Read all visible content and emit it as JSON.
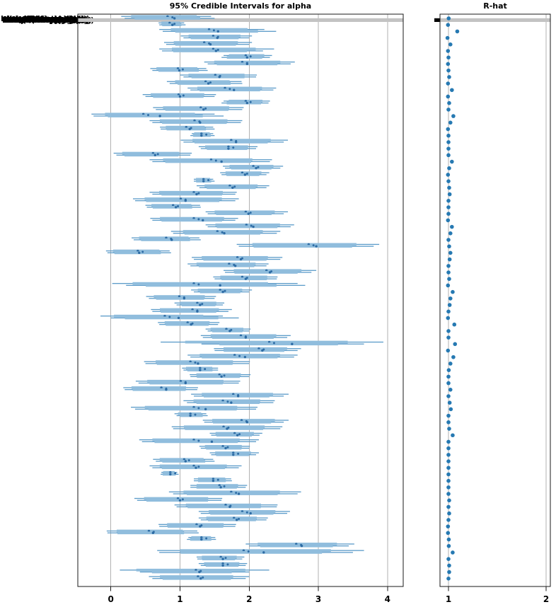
{
  "left_plot": {
    "title": "95% Credible Intervals for alpha",
    "x_tick_labels": [
      "0",
      "1",
      "2",
      "3",
      "4"
    ],
    "y_tick_labels_overlapping": [
      "Lakog(Dbattwl,pWgqb)",
      "Laloyb(Ntirsvya,Mgg)",
      "Lake(Bhswqkqgb,Ndg)",
      "Lalog4kMjqti,JgqWb)",
      "Lakos(B4uvrAddy,jg)",
      "Laloq(Ntlesvy,MAgq)",
      "Lakojr(Dwstplg,Wgb)",
      "Lale4(Dkfrwqy,pjgg)",
      "Lakob(Nhswjkag,Mdg)",
      "Laloi(Bttrsvqa,Jgb)"
    ]
  },
  "right_plot": {
    "title": "R-hat",
    "x_tick_labels": [
      "1",
      "2"
    ]
  },
  "colors": {
    "interval_thin": "#5b9bc9",
    "interval_thick": "#90bddd",
    "median_dot": "#2d6ca5",
    "rhat_dot": "#2679b2",
    "gridline": "#b2b2b2",
    "spine": "#1a1a1a",
    "highlight_band": "#c3c3c3",
    "tick_marker": "#000000"
  },
  "chart_data": [
    {
      "type": "interval",
      "title": "95% Credible Intervals for alpha",
      "xlabel": "",
      "ylabel": "",
      "xlim": [
        -0.48,
        4.22
      ],
      "x_ticks": [
        0,
        1,
        2,
        3,
        4
      ],
      "grid": "vertical",
      "legend": "none",
      "highlight_row_index": 0,
      "row_format": [
        "lo_chain1",
        "hi_chain1",
        "median_chain1",
        "lo_chain2",
        "hi_chain2",
        "median_chain2"
      ],
      "rows": [
        [
          0.15,
          1.45,
          0.82,
          0.2,
          1.5,
          0.92
        ],
        [
          0.69,
          1.06,
          0.85,
          0.7,
          1.08,
          0.89
        ],
        [
          0.7,
          2.22,
          1.42,
          0.75,
          2.39,
          1.55
        ],
        [
          1.01,
          2.04,
          1.48,
          1.05,
          2.0,
          1.54
        ],
        [
          0.77,
          2.04,
          1.35,
          0.8,
          2.0,
          1.44
        ],
        [
          0.7,
          2.36,
          1.48,
          0.74,
          2.2,
          1.52
        ],
        [
          1.63,
          2.33,
          1.95,
          1.6,
          2.3,
          1.97
        ],
        [
          1.35,
          2.66,
          1.9,
          1.4,
          2.6,
          1.97
        ],
        [
          0.57,
          1.38,
          0.97,
          0.6,
          1.4,
          0.99
        ],
        [
          1.0,
          2.11,
          1.51,
          1.05,
          2.1,
          1.57
        ],
        [
          0.81,
          1.89,
          1.37,
          0.85,
          1.9,
          1.41
        ],
        [
          1.11,
          2.39,
          1.65,
          1.15,
          2.35,
          1.78
        ],
        [
          0.46,
          1.52,
          0.98,
          0.5,
          1.5,
          1.0
        ],
        [
          1.63,
          2.3,
          1.95,
          1.6,
          2.28,
          1.97
        ],
        [
          0.61,
          1.92,
          1.3,
          0.65,
          1.9,
          1.34
        ],
        [
          -0.28,
          1.5,
          0.47,
          -0.25,
          1.63,
          0.71
        ],
        [
          0.56,
          1.9,
          1.21,
          0.6,
          1.88,
          1.29
        ],
        [
          0.71,
          1.48,
          1.09,
          0.72,
          1.5,
          1.14
        ],
        [
          1.17,
          1.48,
          1.31,
          1.15,
          1.5,
          1.31
        ],
        [
          1.01,
          2.56,
          1.74,
          1.05,
          2.5,
          1.81
        ],
        [
          1.27,
          2.12,
          1.7,
          1.3,
          2.1,
          1.7
        ],
        [
          0.04,
          1.17,
          0.61,
          0.08,
          1.15,
          0.64
        ],
        [
          0.56,
          2.33,
          1.45,
          0.6,
          2.3,
          1.6
        ],
        [
          1.62,
          2.49,
          2.06,
          1.65,
          2.45,
          2.1
        ],
        [
          1.58,
          2.29,
          1.9,
          1.6,
          2.25,
          1.94
        ],
        [
          1.2,
          1.48,
          1.34,
          1.2,
          1.5,
          1.34
        ],
        [
          1.24,
          2.29,
          1.72,
          1.28,
          2.25,
          1.76
        ],
        [
          0.56,
          1.82,
          1.2,
          0.6,
          1.8,
          1.24
        ],
        [
          0.32,
          1.85,
          1.01,
          0.35,
          1.8,
          1.08
        ],
        [
          0.5,
          1.29,
          0.9,
          0.52,
          1.3,
          0.94
        ],
        [
          1.37,
          2.56,
          1.95,
          1.4,
          2.5,
          1.99
        ],
        [
          0.57,
          1.84,
          1.2,
          0.6,
          1.8,
          1.33
        ],
        [
          1.37,
          2.65,
          1.96,
          1.4,
          2.6,
          2.06
        ],
        [
          0.87,
          2.45,
          1.54,
          0.9,
          2.4,
          1.64
        ],
        [
          0.3,
          1.28,
          0.8,
          0.33,
          1.3,
          0.88
        ],
        [
          1.82,
          3.88,
          2.86,
          1.85,
          3.8,
          2.97
        ],
        [
          -0.07,
          0.85,
          0.39,
          -0.05,
          0.87,
          0.41
        ],
        [
          1.17,
          2.48,
          1.83,
          1.2,
          2.45,
          1.88
        ],
        [
          1.11,
          2.28,
          1.71,
          1.15,
          2.25,
          1.8
        ],
        [
          1.63,
          2.97,
          2.25,
          1.65,
          2.9,
          2.3
        ],
        [
          1.48,
          2.41,
          1.9,
          1.5,
          2.4,
          1.95
        ],
        [
          0.02,
          2.7,
          1.2,
          0.22,
          2.81,
          1.58
        ],
        [
          1.16,
          2.04,
          1.58,
          1.2,
          2.0,
          1.62
        ],
        [
          0.51,
          1.52,
          0.99,
          0.55,
          1.5,
          1.06
        ],
        [
          0.92,
          1.64,
          1.25,
          0.95,
          1.62,
          1.29
        ],
        [
          0.58,
          1.75,
          1.18,
          0.6,
          1.7,
          1.25
        ],
        [
          -0.15,
          1.62,
          0.78,
          0.0,
          1.85,
          0.98
        ],
        [
          0.68,
          1.57,
          1.11,
          0.7,
          1.55,
          1.16
        ],
        [
          1.37,
          2.02,
          1.67,
          1.4,
          2.0,
          1.72
        ],
        [
          1.3,
          2.6,
          1.88,
          1.33,
          2.55,
          1.95
        ],
        [
          0.72,
          3.94,
          2.29,
          1.31,
          3.66,
          2.62
        ],
        [
          1.49,
          2.75,
          2.14,
          1.5,
          2.7,
          2.19
        ],
        [
          1.11,
          2.7,
          1.79,
          1.15,
          2.65,
          1.94
        ],
        [
          0.48,
          2.01,
          1.15,
          0.5,
          2.0,
          1.26
        ],
        [
          1.03,
          1.55,
          1.29,
          1.05,
          1.55,
          1.29
        ],
        [
          1.14,
          2.02,
          1.57,
          1.15,
          2.0,
          1.6
        ],
        [
          0.36,
          1.87,
          1.01,
          0.4,
          1.85,
          1.08
        ],
        [
          0.18,
          1.26,
          0.73,
          0.2,
          1.25,
          0.8
        ],
        [
          1.16,
          2.57,
          1.77,
          1.2,
          2.5,
          1.84
        ],
        [
          1.05,
          2.37,
          1.62,
          1.1,
          2.35,
          1.74
        ],
        [
          0.29,
          2.12,
          1.2,
          0.35,
          2.1,
          1.37
        ],
        [
          0.92,
          1.38,
          1.15,
          0.95,
          1.4,
          1.15
        ],
        [
          1.33,
          2.57,
          1.89,
          1.35,
          2.5,
          1.97
        ],
        [
          0.88,
          2.48,
          1.63,
          0.9,
          2.45,
          1.68
        ],
        [
          1.43,
          2.19,
          1.79,
          1.45,
          2.15,
          1.83
        ],
        [
          0.41,
          2.14,
          1.2,
          0.45,
          2.1,
          1.46
        ],
        [
          1.28,
          2.01,
          1.62,
          1.3,
          2.0,
          1.66
        ],
        [
          1.43,
          2.14,
          1.77,
          1.45,
          2.1,
          1.77
        ],
        [
          0.61,
          1.48,
          1.06,
          0.65,
          1.5,
          1.08
        ],
        [
          0.56,
          1.89,
          1.2,
          0.6,
          1.85,
          1.23
        ],
        [
          0.73,
          0.96,
          0.86,
          0.72,
          0.98,
          0.86
        ],
        [
          1.2,
          1.74,
          1.48,
          1.2,
          1.75,
          1.48
        ],
        [
          1.15,
          1.97,
          1.57,
          1.15,
          1.95,
          1.59
        ],
        [
          0.84,
          2.75,
          1.74,
          0.9,
          2.7,
          1.85
        ],
        [
          0.34,
          1.61,
          0.97,
          0.38,
          1.6,
          1.0
        ],
        [
          0.92,
          2.41,
          1.66,
          0.95,
          2.4,
          1.72
        ],
        [
          1.27,
          2.59,
          1.9,
          1.3,
          2.55,
          2.02
        ],
        [
          1.27,
          2.27,
          1.78,
          1.3,
          2.25,
          1.82
        ],
        [
          0.69,
          1.81,
          1.24,
          0.7,
          1.8,
          1.29
        ],
        [
          -0.06,
          1.25,
          0.55,
          -0.05,
          1.27,
          0.61
        ],
        [
          1.12,
          1.51,
          1.31,
          1.1,
          1.52,
          1.31
        ],
        [
          1.95,
          3.52,
          2.68,
          2.0,
          3.44,
          2.76
        ],
        [
          0.67,
          3.66,
          1.92,
          0.7,
          3.5,
          2.21
        ],
        [
          1.24,
          1.93,
          1.59,
          1.25,
          1.9,
          1.62
        ],
        [
          1.27,
          1.97,
          1.62,
          1.3,
          1.95,
          1.62
        ],
        [
          0.13,
          2.29,
          1.23,
          0.42,
          2.0,
          1.28
        ],
        [
          0.55,
          2.0,
          1.26,
          0.6,
          1.95,
          1.3
        ]
      ]
    },
    {
      "type": "scatter",
      "title": "R-hat",
      "xlabel": "",
      "ylabel": "",
      "xlim": [
        0.91,
        2.04
      ],
      "x_ticks": [
        1,
        2
      ],
      "grid": "vertical",
      "values": [
        1.002,
        0.995,
        1.09,
        0.99,
        1.02,
        0.995,
        1.0,
        0.995,
        1.0,
        1.007,
        0.995,
        1.035,
        0.995,
        1.007,
        1.0,
        1.05,
        1.02,
        0.995,
        1.0,
        1.0,
        1.0,
        1.0,
        1.035,
        1.007,
        0.995,
        1.0,
        1.007,
        1.012,
        1.0,
        1.0,
        1.0,
        0.995,
        1.035,
        1.02,
        1.0,
        1.007,
        1.02,
        1.012,
        1.0,
        1.0,
        1.007,
        0.995,
        1.043,
        1.02,
        1.012,
        1.0,
        0.995,
        1.06,
        1.0,
        1.0,
        1.067,
        0.995,
        1.05,
        1.02,
        1.003,
        1.0,
        1.0,
        1.02,
        1.0,
        1.012,
        1.024,
        1.0,
        1.0,
        1.007,
        1.043,
        1.0,
        1.0,
        1.0,
        1.0,
        1.0,
        1.0,
        1.0,
        1.0,
        1.0,
        1.007,
        1.0,
        1.007,
        1.0,
        0.995,
        0.995,
        1.003,
        1.003,
        1.043,
        1.0,
        1.007,
        1.007,
        1.0
      ]
    }
  ]
}
